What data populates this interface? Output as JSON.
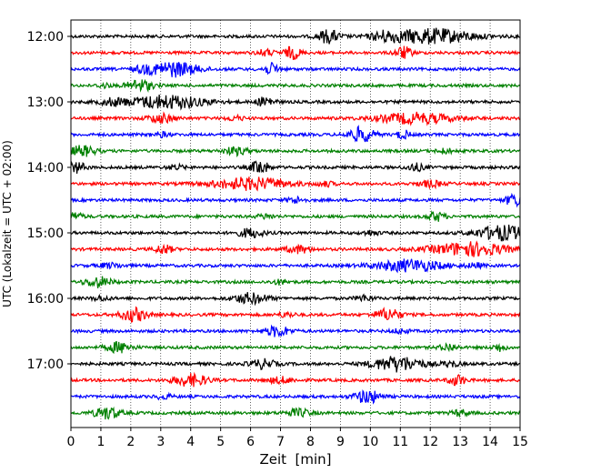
{
  "chart_data": {
    "type": "line",
    "title": "",
    "xlabel": "Zeit  [min]",
    "ylabel": "UTC (Lokalzeit = UTC + 02:00)",
    "xlim": [
      0,
      15
    ],
    "x_ticks": [
      0,
      1,
      2,
      3,
      4,
      5,
      6,
      7,
      8,
      9,
      10,
      11,
      12,
      13,
      14,
      15
    ],
    "y_tick_labels": [
      "12:00",
      "13:00",
      "14:00",
      "15:00",
      "16:00",
      "17:00"
    ],
    "lines_per_hour": 4,
    "line_minutes": 15,
    "start_time": "12:00",
    "grid": "vertical dotted at each minute",
    "colors_cycle": [
      "#000000",
      "#ff0000",
      "#0000ff",
      "#008000"
    ],
    "series": [
      {
        "time": "12:00",
        "color": "#000000",
        "bursts": [
          [
            8.6,
            0.25,
            0.9
          ],
          [
            12.0,
            1.0,
            1.0
          ],
          [
            10.5,
            0.3,
            0.5
          ]
        ]
      },
      {
        "time": "12:15",
        "color": "#ff0000",
        "bursts": [
          [
            7.4,
            0.2,
            0.8
          ],
          [
            11.1,
            0.2,
            0.8
          ],
          [
            6.5,
            0.2,
            0.4
          ]
        ]
      },
      {
        "time": "12:30",
        "color": "#0000ff",
        "bursts": [
          [
            3.4,
            0.6,
            1.0
          ],
          [
            6.7,
            0.2,
            0.7
          ],
          [
            2.4,
            0.2,
            0.3
          ]
        ]
      },
      {
        "time": "12:45",
        "color": "#008000",
        "bursts": [
          [
            2.3,
            0.3,
            0.8
          ],
          [
            1.1,
            0.15,
            0.3
          ]
        ]
      },
      {
        "time": "13:00",
        "color": "#000000",
        "bursts": [
          [
            3.2,
            0.9,
            0.9
          ],
          [
            6.5,
            0.2,
            0.7
          ],
          [
            1.4,
            0.3,
            0.4
          ]
        ]
      },
      {
        "time": "13:15",
        "color": "#ff0000",
        "bursts": [
          [
            3.0,
            0.3,
            0.6
          ],
          [
            11.5,
            0.9,
            0.7
          ],
          [
            5.5,
            0.2,
            0.3
          ]
        ]
      },
      {
        "time": "13:30",
        "color": "#0000ff",
        "bursts": [
          [
            9.7,
            0.3,
            1.0
          ],
          [
            11.1,
            0.15,
            0.6
          ],
          [
            3.0,
            0.2,
            0.3
          ]
        ]
      },
      {
        "time": "13:45",
        "color": "#008000",
        "bursts": [
          [
            0.4,
            0.3,
            0.7
          ],
          [
            5.5,
            0.3,
            0.5
          ],
          [
            12.5,
            0.2,
            0.3
          ]
        ]
      },
      {
        "time": "14:00",
        "color": "#000000",
        "bursts": [
          [
            0.2,
            0.2,
            0.7
          ],
          [
            6.3,
            0.2,
            1.0
          ],
          [
            11.5,
            0.2,
            0.5
          ],
          [
            3.5,
            0.2,
            0.3
          ]
        ]
      },
      {
        "time": "14:15",
        "color": "#ff0000",
        "bursts": [
          [
            6.0,
            0.9,
            0.8
          ],
          [
            12.0,
            0.3,
            0.4
          ],
          [
            8.5,
            0.2,
            0.3
          ]
        ]
      },
      {
        "time": "14:30",
        "color": "#0000ff",
        "bursts": [
          [
            14.8,
            0.2,
            0.8
          ],
          [
            7.5,
            0.2,
            0.4
          ]
        ]
      },
      {
        "time": "14:45",
        "color": "#008000",
        "bursts": [
          [
            0.1,
            0.2,
            0.5
          ],
          [
            12.2,
            0.2,
            0.6
          ],
          [
            6.5,
            0.2,
            0.3
          ]
        ]
      },
      {
        "time": "15:00",
        "color": "#000000",
        "bursts": [
          [
            14.4,
            0.6,
            1.0
          ],
          [
            6.0,
            0.3,
            0.6
          ],
          [
            10.0,
            0.2,
            0.3
          ]
        ]
      },
      {
        "time": "15:15",
        "color": "#ff0000",
        "bursts": [
          [
            13.3,
            0.9,
            0.9
          ],
          [
            3.1,
            0.2,
            0.6
          ],
          [
            7.6,
            0.3,
            0.5
          ]
        ]
      },
      {
        "time": "15:30",
        "color": "#0000ff",
        "bursts": [
          [
            11.3,
            0.8,
            0.8
          ],
          [
            1.3,
            0.3,
            0.3
          ],
          [
            13.5,
            0.2,
            0.3
          ]
        ]
      },
      {
        "time": "15:45",
        "color": "#008000",
        "bursts": [
          [
            0.9,
            0.3,
            0.7
          ],
          [
            7.0,
            0.2,
            0.3
          ]
        ]
      },
      {
        "time": "16:00",
        "color": "#000000",
        "bursts": [
          [
            6.0,
            0.4,
            0.7
          ],
          [
            9.8,
            0.2,
            0.4
          ],
          [
            1.0,
            0.2,
            0.3
          ]
        ]
      },
      {
        "time": "16:15",
        "color": "#ff0000",
        "bursts": [
          [
            2.1,
            0.3,
            0.9
          ],
          [
            10.6,
            0.3,
            0.8
          ],
          [
            7.2,
            0.2,
            0.3
          ]
        ]
      },
      {
        "time": "16:30",
        "color": "#0000ff",
        "bursts": [
          [
            6.9,
            0.3,
            0.7
          ],
          [
            11.0,
            0.2,
            0.3
          ]
        ]
      },
      {
        "time": "16:45",
        "color": "#008000",
        "bursts": [
          [
            1.6,
            0.3,
            0.7
          ],
          [
            12.6,
            0.2,
            0.5
          ],
          [
            14.3,
            0.15,
            0.5
          ]
        ]
      },
      {
        "time": "17:00",
        "color": "#000000",
        "bursts": [
          [
            10.9,
            0.6,
            1.0
          ],
          [
            6.4,
            0.3,
            0.6
          ],
          [
            12.7,
            0.2,
            0.4
          ]
        ]
      },
      {
        "time": "17:15",
        "color": "#ff0000",
        "bursts": [
          [
            4.0,
            0.4,
            0.8
          ],
          [
            12.9,
            0.2,
            0.7
          ],
          [
            7.0,
            0.3,
            0.4
          ]
        ]
      },
      {
        "time": "17:30",
        "color": "#0000ff",
        "bursts": [
          [
            9.9,
            0.3,
            0.9
          ],
          [
            3.1,
            0.2,
            0.3
          ]
        ]
      },
      {
        "time": "17:45",
        "color": "#008000",
        "bursts": [
          [
            1.2,
            0.3,
            0.8
          ],
          [
            7.6,
            0.3,
            0.5
          ],
          [
            13.0,
            0.2,
            0.4
          ]
        ]
      }
    ]
  }
}
